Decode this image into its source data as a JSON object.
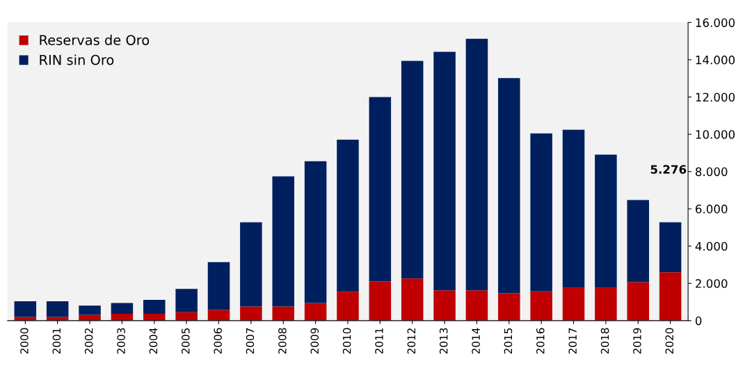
{
  "chart_data": {
    "type": "bar",
    "stacked": true,
    "categories": [
      "2000",
      "2001",
      "2002",
      "2003",
      "2004",
      "2005",
      "2006",
      "2007",
      "2008",
      "2009",
      "2010",
      "2011",
      "2012",
      "2013",
      "2014",
      "2015",
      "2016",
      "2017",
      "2018",
      "2019",
      "2020"
    ],
    "series": [
      {
        "name": "Reservas de Oro",
        "color": "#c00000",
        "values": [
          200,
          200,
          310,
          370,
          370,
          450,
          570,
          760,
          760,
          950,
          1550,
          2100,
          2260,
          1630,
          1630,
          1470,
          1570,
          1760,
          1760,
          2070,
          2600
        ]
      },
      {
        "name": "RIN sin Oro",
        "color": "#001f5f",
        "values": [
          840,
          840,
          500,
          580,
          740,
          1250,
          2570,
          4520,
          6980,
          7600,
          8160,
          9900,
          11680,
          12800,
          13500,
          11550,
          8480,
          8480,
          7150,
          4400,
          2680
        ]
      }
    ],
    "ylim": [
      0,
      16000
    ],
    "yticks": [
      {
        "value": 0,
        "label": "0"
      },
      {
        "value": 2000,
        "label": "2.000"
      },
      {
        "value": 4000,
        "label": "4.000"
      },
      {
        "value": 6000,
        "label": "6.000"
      },
      {
        "value": 8000,
        "label": "8.000"
      },
      {
        "value": 10000,
        "label": "10.000"
      },
      {
        "value": 12000,
        "label": "12.000"
      },
      {
        "value": 14000,
        "label": "14.000"
      },
      {
        "value": 16000,
        "label": "16.000"
      }
    ],
    "annotations": [
      "5.276"
    ],
    "legend": "top left",
    "grid": false
  }
}
